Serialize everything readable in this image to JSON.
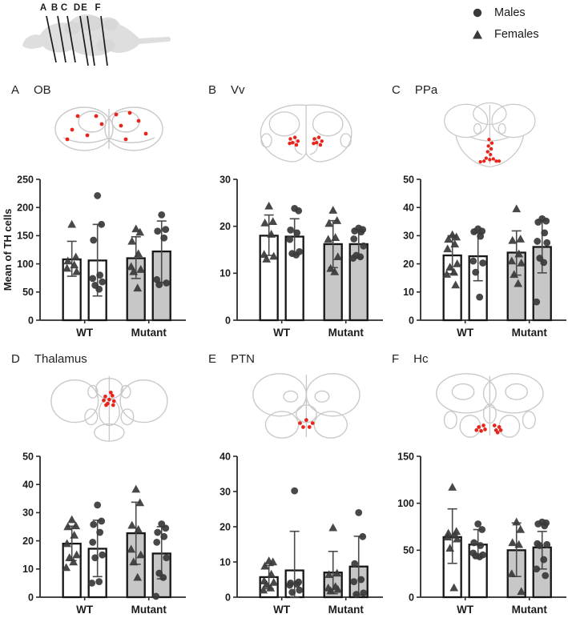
{
  "figure": {
    "schematic": {
      "labels": [
        "A",
        "B",
        "C",
        "D",
        "E",
        "F"
      ],
      "description": "lateral brain outline with coronal section lines"
    },
    "legend": {
      "items": [
        {
          "marker": "circle",
          "label": "Males"
        },
        {
          "marker": "triangle",
          "label": "Females"
        }
      ]
    },
    "ylabel": "Mean of TH cells",
    "colors": {
      "wt_bar_fill": "#ffffff",
      "mutant_bar_fill": "#c7c7c7",
      "bar_stroke": "#161616",
      "marker": "#3a3a3a",
      "error_bar": "#4a4a4a",
      "axis": "#2b2b2b",
      "red_dot": "#e8251d",
      "brain_outline": "#c9c9c9",
      "schematic_fill": "#dedede"
    }
  },
  "chart_data": [
    {
      "panel": "A",
      "title": "OB",
      "type": "bar",
      "categories": [
        "WT",
        "Mutant"
      ],
      "ylim": [
        0,
        250
      ],
      "yticks": [
        0,
        50,
        100,
        150,
        200,
        250
      ],
      "ylabel": "Mean of TH cells",
      "inset_name": "coronal-section-ob",
      "inset_red_dots": 12,
      "series": [
        {
          "name": "WT Females",
          "marker": "triangle",
          "fill": "#ffffff",
          "mean": 108,
          "err": [
            78,
            140
          ],
          "points": [
            170,
            112,
            105,
            98,
            92,
            86
          ]
        },
        {
          "name": "WT Males",
          "marker": "circle",
          "fill": "#ffffff",
          "mean": 106,
          "err": [
            43,
            170
          ],
          "points": [
            221,
            170,
            142,
            80,
            74,
            68,
            62,
            55
          ]
        },
        {
          "name": "Mutant Females",
          "marker": "triangle",
          "fill": "#c7c7c7",
          "mean": 110,
          "err": [
            74,
            148
          ],
          "points": [
            162,
            156,
            140,
            118,
            95,
            90,
            86,
            57
          ]
        },
        {
          "name": "Mutant Males",
          "marker": "circle",
          "fill": "#c7c7c7",
          "mean": 122,
          "err": [
            67,
            176
          ],
          "points": [
            187,
            161,
            158,
            146,
            72,
            66,
            63
          ]
        }
      ]
    },
    {
      "panel": "B",
      "title": "Vv",
      "type": "bar",
      "categories": [
        "WT",
        "Mutant"
      ],
      "ylim": [
        0,
        30
      ],
      "yticks": [
        0,
        10,
        20,
        30
      ],
      "inset_name": "coronal-section-vv",
      "inset_red_dots": 12,
      "series": [
        {
          "name": "WT Females",
          "marker": "triangle",
          "fill": "#ffffff",
          "mean": 18,
          "err": [
            13.8,
            22.4
          ],
          "points": [
            24.3,
            21.0,
            20.7,
            18.3,
            14.0,
            13.6,
            13.0
          ]
        },
        {
          "name": "WT Males",
          "marker": "circle",
          "fill": "#ffffff",
          "mean": 17.8,
          "err": [
            14.0,
            21.6
          ],
          "points": [
            23.8,
            23.3,
            19.2,
            18.6,
            17.2,
            14.6,
            14.2,
            13.9
          ]
        },
        {
          "name": "Mutant Females",
          "marker": "triangle",
          "fill": "#c7c7c7",
          "mean": 16.2,
          "err": [
            11.2,
            21.2
          ],
          "points": [
            23.4,
            21.2,
            20.6,
            17.6,
            17.2,
            13.5,
            11.0,
            10.3
          ]
        },
        {
          "name": "Mutant Males",
          "marker": "circle",
          "fill": "#c7c7c7",
          "mean": 16.2,
          "err": [
            13.3,
            19.3
          ],
          "points": [
            19.6,
            19.3,
            19.0,
            18.8,
            17.3,
            15.8,
            13.8,
            13.5,
            13.2
          ]
        }
      ]
    },
    {
      "panel": "C",
      "title": "PPa",
      "type": "bar",
      "categories": [
        "WT",
        "Mutant"
      ],
      "ylim": [
        0,
        50
      ],
      "yticks": [
        0,
        10,
        20,
        30,
        40,
        50
      ],
      "inset_name": "coronal-section-ppa",
      "inset_red_dots": 13,
      "series": [
        {
          "name": "WT Females",
          "marker": "triangle",
          "fill": "#ffffff",
          "mean": 23,
          "err": [
            16.5,
            30
          ],
          "points": [
            30.3,
            29.5,
            28.7,
            27.0,
            25.3,
            20.0,
            18.8,
            17.0,
            16.3,
            12.5
          ]
        },
        {
          "name": "WT Males",
          "marker": "circle",
          "fill": "#ffffff",
          "mean": 22.7,
          "err": [
            14.0,
            31.0
          ],
          "points": [
            32.4,
            31.6,
            31.4,
            29.8,
            21.0,
            20.3,
            17.0,
            8.2
          ]
        },
        {
          "name": "Mutant Females",
          "marker": "triangle",
          "fill": "#c7c7c7",
          "mean": 24,
          "err": [
            16.0,
            31.7
          ],
          "points": [
            39.5,
            28.8,
            28.3,
            23.5,
            21.0,
            20.3,
            16.2,
            13.0
          ]
        },
        {
          "name": "Mutant Males",
          "marker": "circle",
          "fill": "#c7c7c7",
          "mean": 26,
          "err": [
            16.8,
            35.5
          ],
          "points": [
            36.0,
            35.2,
            34.8,
            31.0,
            28.0,
            27.5,
            22.0,
            20.5,
            6.5
          ]
        }
      ]
    },
    {
      "panel": "D",
      "title": "Thalamus",
      "type": "bar",
      "categories": [
        "WT",
        "Mutant"
      ],
      "ylim": [
        0,
        50
      ],
      "yticks": [
        0,
        10,
        20,
        30,
        40,
        50
      ],
      "inset_name": "coronal-section-thalamus",
      "inset_red_dots": 9,
      "series": [
        {
          "name": "WT Females",
          "marker": "triangle",
          "fill": "#ffffff",
          "mean": 19,
          "err": [
            13.0,
            25.2
          ],
          "points": [
            27.5,
            25.3,
            25.0,
            22.0,
            19.0,
            15.0,
            14.0,
            12.5,
            10.5
          ]
        },
        {
          "name": "WT Males",
          "marker": "circle",
          "fill": "#ffffff",
          "mean": 17.2,
          "err": [
            7.3,
            27.3
          ],
          "points": [
            32.7,
            27.0,
            25.8,
            23.0,
            19.5,
            15.0,
            14.0,
            5.5,
            5.0
          ]
        },
        {
          "name": "Mutant Females",
          "marker": "triangle",
          "fill": "#c7c7c7",
          "mean": 22.7,
          "err": [
            11.7,
            33.7
          ],
          "points": [
            38.3,
            33.5,
            25.5,
            24.0,
            17.0,
            15.0,
            12.5,
            7.0
          ]
        },
        {
          "name": "Mutant Males",
          "marker": "circle",
          "fill": "#c7c7c7",
          "mean": 15.5,
          "err": [
            6.5,
            25.0
          ],
          "points": [
            26.0,
            24.5,
            23.0,
            21.5,
            19.5,
            14.0,
            8.5,
            7.0,
            0.3
          ]
        }
      ]
    },
    {
      "panel": "E",
      "title": "PTN",
      "type": "bar",
      "categories": [
        "WT",
        "Mutant"
      ],
      "ylim": [
        0,
        40
      ],
      "yticks": [
        0,
        10,
        20,
        30,
        40
      ],
      "inset_name": "coronal-section-ptn",
      "inset_red_dots": 5,
      "series": [
        {
          "name": "WT Females",
          "marker": "triangle",
          "fill": "#ffffff",
          "mean": 5.7,
          "err": [
            2.4,
            9.0
          ],
          "points": [
            10.3,
            10.0,
            8.8,
            6.5,
            4.6,
            4.2,
            3.6,
            2.6,
            2.0
          ]
        },
        {
          "name": "WT Males",
          "marker": "circle",
          "fill": "#ffffff",
          "mean": 7.6,
          "err": [
            0,
            18.7
          ],
          "points": [
            30.2,
            4.3,
            4.0,
            3.7,
            3.4,
            2.0,
            1.4
          ]
        },
        {
          "name": "Mutant Females",
          "marker": "triangle",
          "fill": "#c7c7c7",
          "mean": 7.0,
          "err": [
            1.0,
            13.0
          ],
          "points": [
            19.7,
            6.8,
            6.4,
            3.0,
            2.6,
            2.2,
            1.8
          ]
        },
        {
          "name": "Mutant Males",
          "marker": "circle",
          "fill": "#c7c7c7",
          "mean": 8.7,
          "err": [
            0.6,
            17.3
          ],
          "points": [
            24.0,
            17.2,
            9.5,
            5.0,
            4.4,
            1.2,
            0.8
          ]
        }
      ]
    },
    {
      "panel": "F",
      "title": "Hc",
      "type": "bar",
      "categories": [
        "WT",
        "Mutant"
      ],
      "ylim": [
        0,
        150
      ],
      "yticks": [
        0,
        50,
        100,
        150
      ],
      "inset_name": "coronal-section-hc",
      "inset_red_dots": 10,
      "series": [
        {
          "name": "WT Females",
          "marker": "triangle",
          "fill": "#ffffff",
          "mean": 64,
          "err": [
            36,
            94
          ],
          "points": [
            117,
            70,
            68,
            66,
            64,
            62,
            52,
            10
          ]
        },
        {
          "name": "WT Males",
          "marker": "circle",
          "fill": "#ffffff",
          "mean": 56,
          "err": [
            42,
            72
          ],
          "points": [
            78,
            72,
            58,
            55,
            47,
            45,
            44,
            43
          ]
        },
        {
          "name": "Mutant Females",
          "marker": "triangle",
          "fill": "#c7c7c7",
          "mean": 50,
          "err": [
            22,
            79
          ],
          "points": [
            80,
            72,
            58,
            56,
            25,
            6
          ]
        },
        {
          "name": "Mutant Males",
          "marker": "circle",
          "fill": "#c7c7c7",
          "mean": 53,
          "err": [
            30,
            70
          ],
          "points": [
            80,
            79,
            78,
            76,
            57,
            56,
            55,
            40,
            30,
            23
          ]
        }
      ]
    }
  ]
}
